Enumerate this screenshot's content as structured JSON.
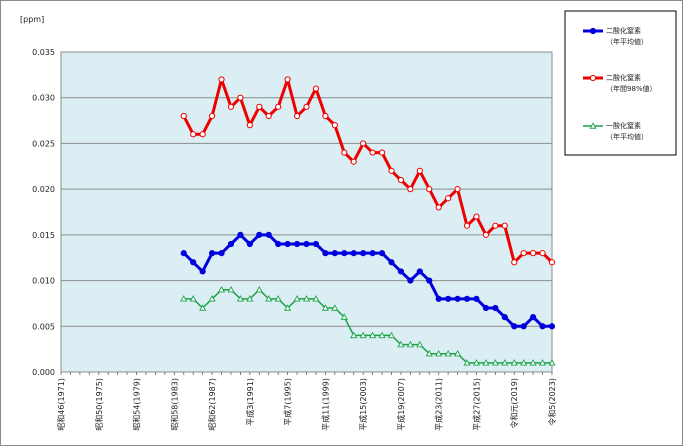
{
  "chart_data": {
    "type": "line",
    "unit_label": "[ppm]",
    "ylim": [
      0,
      0.035
    ],
    "y_ticks": [
      "0.000",
      "0.005",
      "0.010",
      "0.015",
      "0.020",
      "0.025",
      "0.030",
      "0.035"
    ],
    "x_start_year": 1971,
    "x_end_year": 2023,
    "x_tick_labels": [
      {
        "year": 1971,
        "label": "昭和46(1971)"
      },
      {
        "year": 1975,
        "label": "昭和50(1975)"
      },
      {
        "year": 1979,
        "label": "昭和54(1979)"
      },
      {
        "year": 1983,
        "label": "昭和58(1983)"
      },
      {
        "year": 1987,
        "label": "昭和62(1987)"
      },
      {
        "year": 1991,
        "label": "平成3(1991)"
      },
      {
        "year": 1995,
        "label": "平成7(1995)"
      },
      {
        "year": 1999,
        "label": "平成11(1999)"
      },
      {
        "year": 2003,
        "label": "平成15(2003)"
      },
      {
        "year": 2007,
        "label": "平成19(2007)"
      },
      {
        "year": 2011,
        "label": "平成23(2011)"
      },
      {
        "year": 2015,
        "label": "平成27(2015)"
      },
      {
        "year": 2019,
        "label": "令和元(2019)"
      },
      {
        "year": 2023,
        "label": "令和5(2023)"
      }
    ],
    "legend_position": "top-right",
    "grid": true,
    "series": [
      {
        "name": "二酸化窒素",
        "sub": "（年平均値）",
        "color": "#0000dd",
        "marker": "circle-filled",
        "x": [
          1984,
          1985,
          1986,
          1987,
          1988,
          1989,
          1990,
          1991,
          1992,
          1993,
          1994,
          1995,
          1996,
          1997,
          1998,
          1999,
          2000,
          2001,
          2002,
          2003,
          2004,
          2005,
          2006,
          2007,
          2008,
          2009,
          2010,
          2011,
          2012,
          2013,
          2014,
          2015,
          2016,
          2017,
          2018,
          2019,
          2020,
          2021,
          2022,
          2023
        ],
        "values": [
          0.013,
          0.012,
          0.011,
          0.013,
          0.013,
          0.014,
          0.015,
          0.014,
          0.015,
          0.015,
          0.014,
          0.014,
          0.014,
          0.014,
          0.014,
          0.013,
          0.013,
          0.013,
          0.013,
          0.013,
          0.013,
          0.013,
          0.012,
          0.011,
          0.01,
          0.011,
          0.01,
          0.008,
          0.008,
          0.008,
          0.008,
          0.008,
          0.007,
          0.007,
          0.006,
          0.005,
          0.005,
          0.006,
          0.005,
          0.005
        ]
      },
      {
        "name": "二酸化窒素",
        "sub": "（年間98%値）",
        "color": "#ee0000",
        "marker": "circle-open",
        "x": [
          1984,
          1985,
          1986,
          1987,
          1988,
          1989,
          1990,
          1991,
          1992,
          1993,
          1994,
          1995,
          1996,
          1997,
          1998,
          1999,
          2000,
          2001,
          2002,
          2003,
          2004,
          2005,
          2006,
          2007,
          2008,
          2009,
          2010,
          2011,
          2012,
          2013,
          2014,
          2015,
          2016,
          2017,
          2018,
          2019,
          2020,
          2021,
          2022,
          2023
        ],
        "values": [
          0.028,
          0.026,
          0.026,
          0.028,
          0.032,
          0.029,
          0.03,
          0.027,
          0.029,
          0.028,
          0.029,
          0.032,
          0.028,
          0.029,
          0.031,
          0.028,
          0.027,
          0.024,
          0.023,
          0.025,
          0.024,
          0.024,
          0.022,
          0.021,
          0.02,
          0.022,
          0.02,
          0.018,
          0.019,
          0.02,
          0.016,
          0.017,
          0.015,
          0.016,
          0.016,
          0.012,
          0.013,
          0.013,
          0.013,
          0.012
        ]
      },
      {
        "name": "一酸化窒素",
        "sub": "（年平均値）",
        "color": "#1aa44a",
        "marker": "triangle-open",
        "x": [
          1984,
          1985,
          1986,
          1987,
          1988,
          1989,
          1990,
          1991,
          1992,
          1993,
          1994,
          1995,
          1996,
          1997,
          1998,
          1999,
          2000,
          2001,
          2002,
          2003,
          2004,
          2005,
          2006,
          2007,
          2008,
          2009,
          2010,
          2011,
          2012,
          2013,
          2014,
          2015,
          2016,
          2017,
          2018,
          2019,
          2020,
          2021,
          2022,
          2023
        ],
        "values": [
          0.008,
          0.008,
          0.007,
          0.008,
          0.009,
          0.009,
          0.008,
          0.008,
          0.009,
          0.008,
          0.008,
          0.007,
          0.008,
          0.008,
          0.008,
          0.007,
          0.007,
          0.006,
          0.004,
          0.004,
          0.004,
          0.004,
          0.004,
          0.003,
          0.003,
          0.003,
          0.002,
          0.002,
          0.002,
          0.002,
          0.001,
          0.001,
          0.001,
          0.001,
          0.001,
          0.001,
          0.001,
          0.001,
          0.001,
          0.001
        ]
      }
    ]
  }
}
